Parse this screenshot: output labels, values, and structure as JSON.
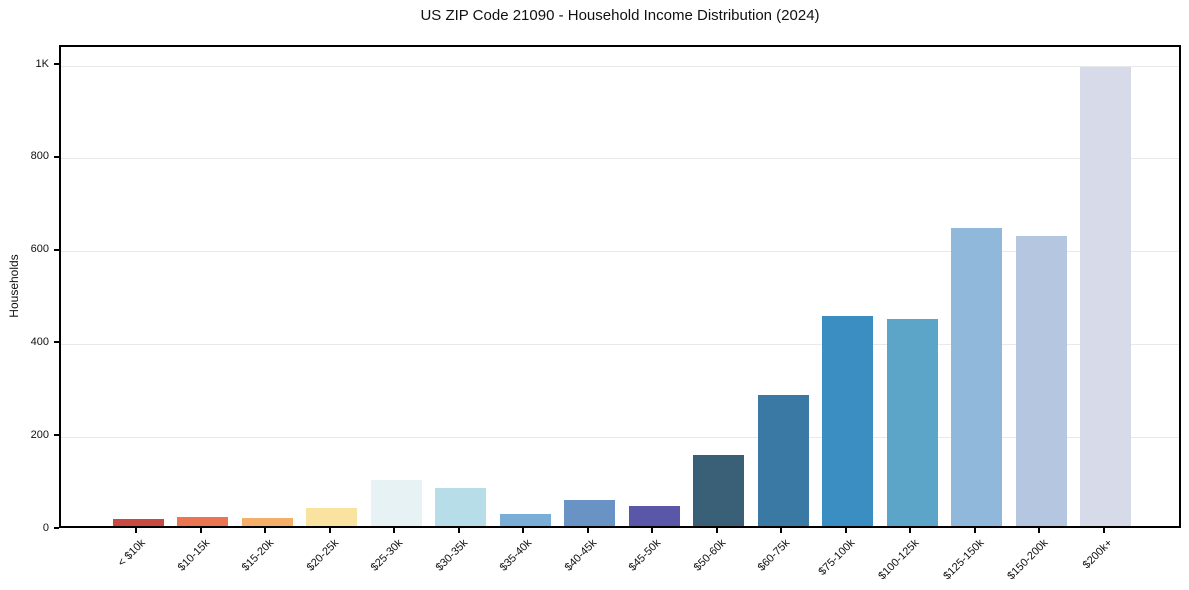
{
  "chart_data": {
    "type": "bar",
    "title": "US ZIP Code 21090 - Household Income Distribution (2024)",
    "xlabel": "",
    "ylabel": "Households",
    "categories": [
      "< $10k",
      "$10-15k",
      "$15-20k",
      "$20-25k",
      "$25-30k",
      "$30-35k",
      "$35-40k",
      "$40-45k",
      "$45-50k",
      "$50-60k",
      "$60-75k",
      "$75-100k",
      "$100-125k",
      "$125-150k",
      "$150-200k",
      "$200k+"
    ],
    "values": [
      16,
      20,
      18,
      38,
      100,
      82,
      25,
      57,
      44,
      154,
      282,
      452,
      447,
      643,
      625,
      990
    ],
    "bar_colors": [
      "#C94A42",
      "#EB7550",
      "#F5AF6B",
      "#FAE3A0",
      "#E7F2F5",
      "#B7DDE9",
      "#7BAED7",
      "#6A93C5",
      "#5A57A8",
      "#3A6077",
      "#3979A3",
      "#3B8EC2",
      "#5CA4C8",
      "#90B8DA",
      "#B5C7E0",
      "#D7DAE8"
    ],
    "ylim": [
      0,
      1041
    ],
    "yticks": [
      {
        "value": 0,
        "label": "0"
      },
      {
        "value": 200,
        "label": "200"
      },
      {
        "value": 400,
        "label": "400"
      },
      {
        "value": 600,
        "label": "600"
      },
      {
        "value": 800,
        "label": "800"
      },
      {
        "value": 1000,
        "label": "1K"
      }
    ],
    "grid": "y",
    "legend": null,
    "gridline_color": "#e7e9ea",
    "axis_color": "#000000"
  }
}
